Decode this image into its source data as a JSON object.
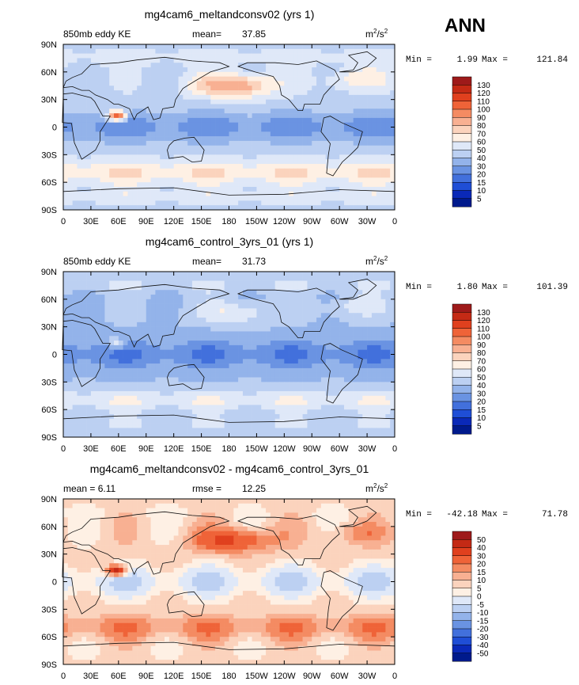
{
  "season": "ANN",
  "x_ticks": [
    "0",
    "30E",
    "60E",
    "90E",
    "120E",
    "150E",
    "180",
    "150W",
    "120W",
    "90W",
    "60W",
    "30W",
    "0"
  ],
  "y_ticks": [
    "90N",
    "60N",
    "30N",
    "0",
    "30S",
    "60S",
    "90S"
  ],
  "units_base": "m",
  "units_exp1": "2",
  "units_mid": "/s",
  "units_exp2": "2",
  "min_label": "Min =",
  "max_label": "Max =",
  "panels": [
    {
      "title": "mg4cam6_meltandconsv02 (yrs 1)",
      "left_label": "850mb eddy KE",
      "stat_label": "mean=",
      "stat_value": "37.85",
      "min_value": "1.99",
      "max_value": "121.84",
      "levels": [
        "130",
        "120",
        "110",
        "100",
        "90",
        "80",
        "70",
        "60",
        "50",
        "40",
        "30",
        "20",
        "15",
        "10",
        "5"
      ],
      "colors": [
        "#9e1a1a",
        "#c42a15",
        "#e0401e",
        "#ef6338",
        "#f48b62",
        "#f8b092",
        "#fbd3bd",
        "#fef0e4",
        "#dfe8f8",
        "#bcd0f2",
        "#93b3ea",
        "#6a93e2",
        "#4270dc",
        "#1f4ed6",
        "#0a29b8",
        "#001a8c"
      ],
      "field": {
        "base": 48,
        "tropics": 26,
        "storm_tracks": 78,
        "pacific_jet": 92,
        "arabian_sea": 125,
        "polar": 62
      },
      "chart_data": {
        "type": "heatmap",
        "title": "mg4cam6_meltandconsv02 (yrs 1)",
        "variable": "850mb eddy KE",
        "mean": 37.85,
        "min": 1.99,
        "max": 121.84,
        "xlim": [
          0,
          360
        ],
        "ylim": [
          -90,
          90
        ],
        "contour_levels": [
          5,
          10,
          15,
          20,
          30,
          40,
          50,
          60,
          70,
          80,
          90,
          100,
          110,
          120,
          130
        ]
      }
    },
    {
      "title": "mg4cam6_control_3yrs_01 (yrs 1)",
      "left_label": "850mb eddy KE",
      "stat_label": "mean=",
      "stat_value": "31.73",
      "min_value": "1.80",
      "max_value": "101.39",
      "levels": [
        "130",
        "120",
        "110",
        "100",
        "90",
        "80",
        "70",
        "60",
        "50",
        "40",
        "30",
        "20",
        "15",
        "10",
        "5"
      ],
      "colors": [
        "#9e1a1a",
        "#c42a15",
        "#e0401e",
        "#ef6338",
        "#f48b62",
        "#f8b092",
        "#fbd3bd",
        "#fef0e4",
        "#dfe8f8",
        "#bcd0f2",
        "#93b3ea",
        "#6a93e2",
        "#4270dc",
        "#1f4ed6",
        "#0a29b8",
        "#001a8c"
      ],
      "field": {
        "base": 40,
        "tropics": 22,
        "storm_tracks": 66,
        "pacific_jet": 60,
        "arabian_sea": 70,
        "polar": 58
      },
      "chart_data": {
        "type": "heatmap",
        "title": "mg4cam6_control_3yrs_01 (yrs 1)",
        "variable": "850mb eddy KE",
        "mean": 31.73,
        "min": 1.8,
        "max": 101.39,
        "xlim": [
          0,
          360
        ],
        "ylim": [
          -90,
          90
        ],
        "contour_levels": [
          5,
          10,
          15,
          20,
          30,
          40,
          50,
          60,
          70,
          80,
          90,
          100,
          110,
          120,
          130
        ]
      }
    },
    {
      "title": "mg4cam6_meltandconsv02 - mg4cam6_control_3yrs_01",
      "left_label": "mean =    6.11",
      "stat_label": "rmse =",
      "stat_value": "12.25",
      "min_value": "-42.18",
      "max_value": "71.78",
      "levels": [
        "50",
        "40",
        "30",
        "20",
        "15",
        "10",
        "5",
        "0",
        "-5",
        "-10",
        "-15",
        "-20",
        "-30",
        "-40",
        "-50"
      ],
      "colors": [
        "#9e1a1a",
        "#c42a15",
        "#e0401e",
        "#ef6338",
        "#f48b62",
        "#f8b092",
        "#fbd3bd",
        "#fef0e4",
        "#dfe8f8",
        "#bcd0f2",
        "#93b3ea",
        "#6a93e2",
        "#4270dc",
        "#1f4ed6",
        "#0a29b8",
        "#001a8c"
      ],
      "field": {
        "base": 7,
        "tropics": -4,
        "storm_tracks": 22,
        "pacific_jet": 32,
        "arabian_sea": 55,
        "polar": 4
      },
      "chart_data": {
        "type": "heatmap",
        "title": "mg4cam6_meltandconsv02 - mg4cam6_control_3yrs_01",
        "variable": "difference",
        "mean": 6.11,
        "rmse": 12.25,
        "min": -42.18,
        "max": 71.78,
        "xlim": [
          0,
          360
        ],
        "ylim": [
          -90,
          90
        ],
        "contour_levels": [
          -50,
          -40,
          -30,
          -20,
          -15,
          -10,
          -5,
          0,
          5,
          10,
          15,
          20,
          30,
          40,
          50
        ]
      }
    }
  ]
}
